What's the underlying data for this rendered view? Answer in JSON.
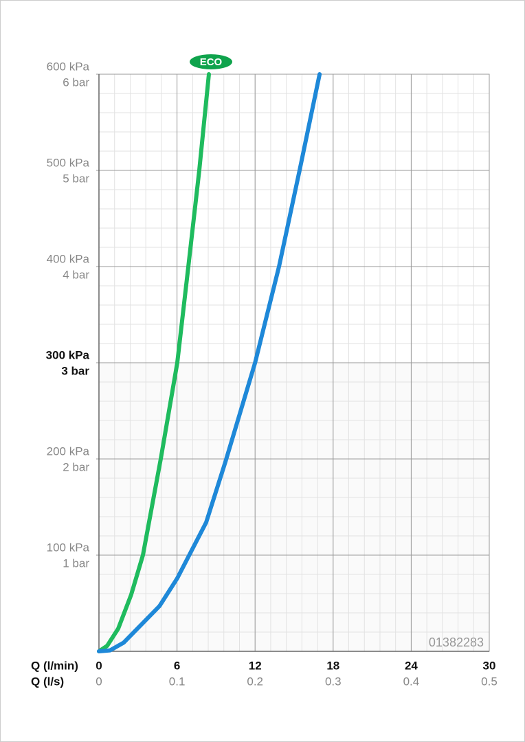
{
  "chart_data": {
    "type": "line",
    "xlabel": "Q (l/min)",
    "x2label": "Q (l/s)",
    "xlim": [
      0,
      30
    ],
    "xticks": [
      0,
      6,
      12,
      18,
      24,
      30
    ],
    "x2lim": [
      0,
      0.5
    ],
    "x2ticks": [
      0,
      0.1,
      0.2,
      0.3,
      0.4,
      0.5
    ],
    "ylim": [
      0,
      600
    ],
    "yticks": [
      {
        "value": 100,
        "label": "100 kPa"
      },
      {
        "value": 200,
        "label": "200 kPa"
      },
      {
        "value": 300,
        "label": "300 kPa",
        "bold": true
      },
      {
        "value": 400,
        "label": "400 kPa"
      },
      {
        "value": 500,
        "label": "500 kPa"
      },
      {
        "value": 600,
        "label": "600 kPa"
      }
    ],
    "y2lim": [
      0,
      6
    ],
    "y2ticks": [
      {
        "value": 1,
        "label": "1 bar"
      },
      {
        "value": 2,
        "label": "2 bar"
      },
      {
        "value": 3,
        "label": "3 bar",
        "bold": true
      },
      {
        "value": 4,
        "label": "4 bar"
      },
      {
        "value": 5,
        "label": "5 bar"
      },
      {
        "value": 6,
        "label": "6 bar"
      }
    ],
    "grid": true,
    "minor_grid": {
      "x": 1.2,
      "y": 20
    },
    "code": "01382283",
    "series": [
      {
        "name": "ECO",
        "color": "#1fbb5e",
        "x": [
          0,
          0.63,
          1.48,
          2.48,
          3.38,
          4.75,
          6.02,
          6.87,
          7.71,
          8.45
        ],
        "values": [
          0,
          5.7,
          23.6,
          59,
          100,
          200,
          300,
          400,
          500,
          600
        ]
      },
      {
        "color": "#1e88d8",
        "x": [
          0,
          0.85,
          1.9,
          4.65,
          6.02,
          8.24,
          9.72,
          12,
          13.84,
          15.42,
          16.96
        ],
        "values": [
          0,
          1,
          9,
          47,
          76,
          134,
          197,
          300,
          400,
          500,
          600
        ]
      }
    ]
  }
}
